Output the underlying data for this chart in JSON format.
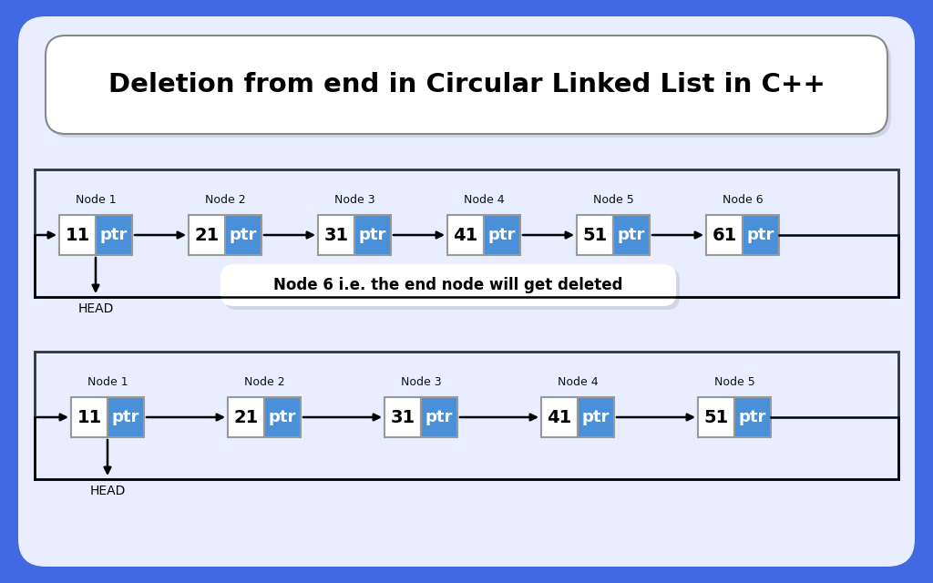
{
  "title": "Deletion from end in Circular Linked List in C++",
  "bg_outer": "#4169e1",
  "bg_inner": "#e8eeff",
  "title_box_bg": "#ffffff",
  "title_fontsize": 21,
  "node_white": "#ffffff",
  "node_blue": "#4a90d9",
  "node_text_color": "#000000",
  "ptr_text_color": "#ffffff",
  "node_label_color": "#111111",
  "head_label": "HEAD",
  "middle_text": "Node 6 i.e. the end node will get deleted",
  "middle_box_bg": "#ffffff",
  "list1": {
    "nodes": [
      {
        "label": "Node 1",
        "value": "11"
      },
      {
        "label": "Node 2",
        "value": "21"
      },
      {
        "label": "Node 3",
        "value": "31"
      },
      {
        "label": "Node 4",
        "value": "41"
      },
      {
        "label": "Node 5",
        "value": "51"
      },
      {
        "label": "Node 6",
        "value": "61"
      }
    ]
  },
  "list2": {
    "nodes": [
      {
        "label": "Node 1",
        "value": "11"
      },
      {
        "label": "Node 2",
        "value": "21"
      },
      {
        "label": "Node 3",
        "value": "31"
      },
      {
        "label": "Node 4",
        "value": "41"
      },
      {
        "label": "Node 5",
        "value": "51"
      }
    ]
  }
}
